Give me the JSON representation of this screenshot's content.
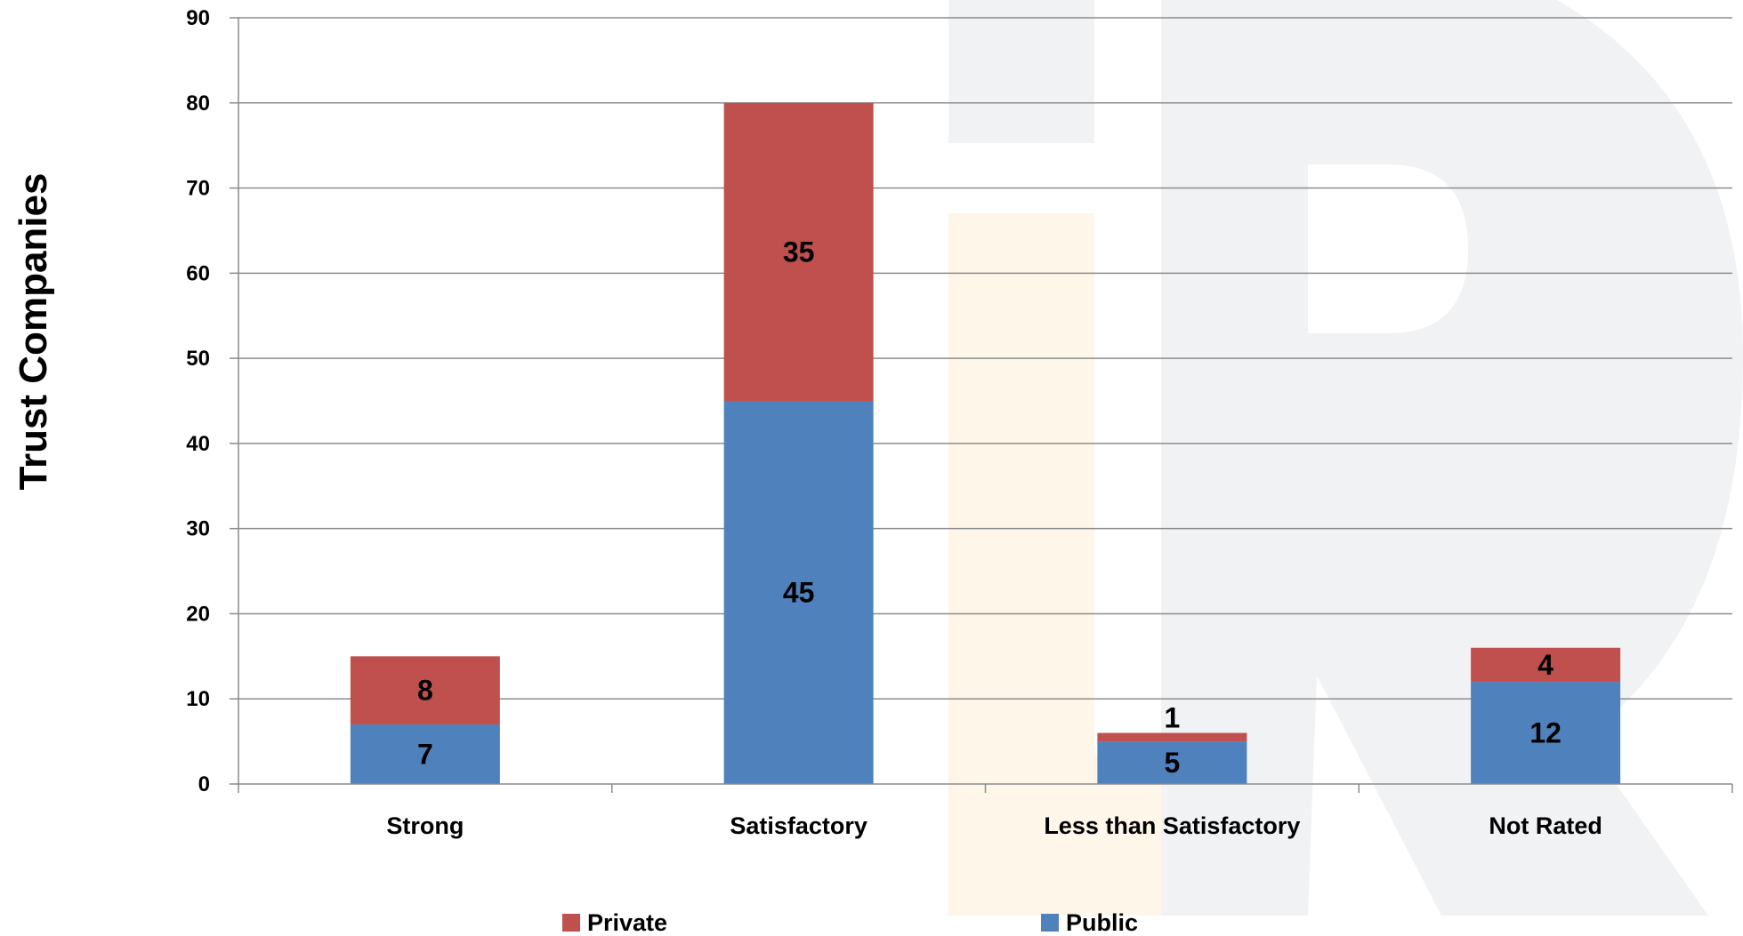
{
  "chart_data": {
    "type": "bar",
    "stacked": true,
    "ylabel": "Trust Companies",
    "xlabel": "",
    "ylim": [
      0,
      90
    ],
    "yticks": [
      0,
      10,
      20,
      30,
      40,
      50,
      60,
      70,
      80,
      90
    ],
    "grid": true,
    "legend_position": "bottom",
    "categories": [
      "Strong",
      "Satisfactory",
      "Less than Satisfactory",
      "Not Rated"
    ],
    "series": [
      {
        "name": "Public",
        "color": "#4f81bd",
        "values": [
          7,
          45,
          5,
          12
        ]
      },
      {
        "name": "Private",
        "color": "#c0504d",
        "values": [
          8,
          35,
          1,
          4
        ]
      }
    ],
    "legend_order": [
      "Private",
      "Public"
    ]
  }
}
